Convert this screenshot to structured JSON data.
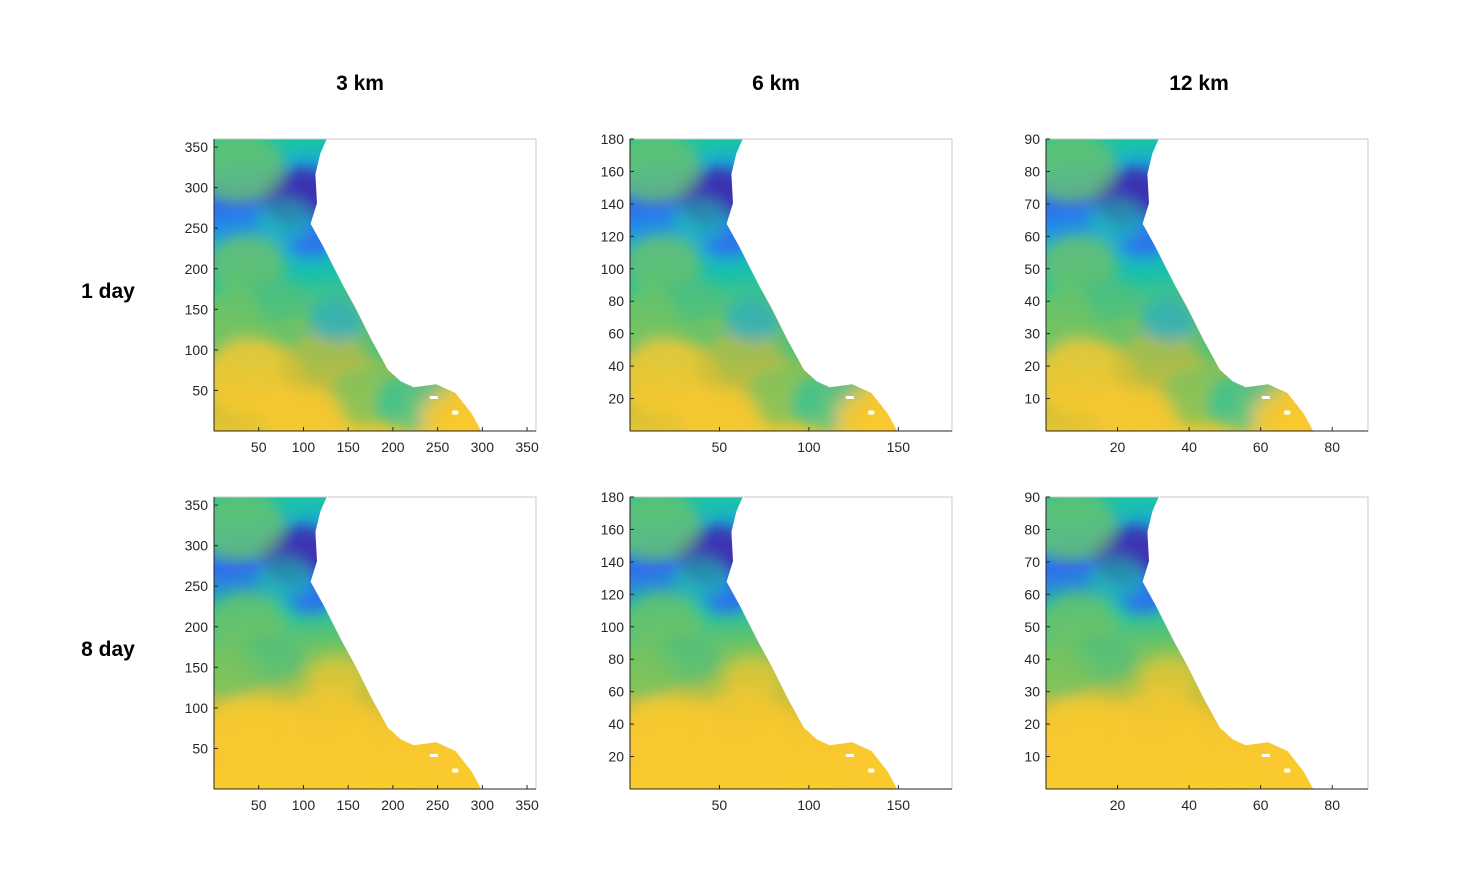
{
  "column_titles": [
    "3 km",
    "6 km",
    "12 km"
  ],
  "row_titles": [
    "1 day",
    "8 day"
  ],
  "colors": {
    "colormap": [
      "#3e26a8",
      "#2f6bf1",
      "#18a9dc",
      "#1bc1aa",
      "#73c361",
      "#c4bc3b",
      "#f9c92f",
      "#f8e81c"
    ],
    "axis": "#262626",
    "land": "#ffffff"
  },
  "chart_data": [
    {
      "type": "heatmap",
      "row": "1 day",
      "column": "3 km",
      "xlim": [
        0,
        360
      ],
      "ylim": [
        0,
        360
      ],
      "xticks": [
        50,
        100,
        150,
        200,
        250,
        300,
        350
      ],
      "yticks": [
        50,
        100,
        150,
        200,
        250,
        300,
        350
      ]
    },
    {
      "type": "heatmap",
      "row": "1 day",
      "column": "6 km",
      "xlim": [
        0,
        180
      ],
      "ylim": [
        0,
        180
      ],
      "xticks": [
        50,
        100,
        150
      ],
      "yticks": [
        20,
        40,
        60,
        80,
        100,
        120,
        140,
        160,
        180
      ]
    },
    {
      "type": "heatmap",
      "row": "1 day",
      "column": "12 km",
      "xlim": [
        0,
        90
      ],
      "ylim": [
        0,
        90
      ],
      "xticks": [
        20,
        40,
        60,
        80
      ],
      "yticks": [
        10,
        20,
        30,
        40,
        50,
        60,
        70,
        80,
        90
      ]
    },
    {
      "type": "heatmap",
      "row": "8 day",
      "column": "3 km",
      "xlim": [
        0,
        360
      ],
      "ylim": [
        0,
        360
      ],
      "xticks": [
        50,
        100,
        150,
        200,
        250,
        300,
        350
      ],
      "yticks": [
        50,
        100,
        150,
        200,
        250,
        300,
        350
      ]
    },
    {
      "type": "heatmap",
      "row": "8 day",
      "column": "6 km",
      "xlim": [
        0,
        180
      ],
      "ylim": [
        0,
        180
      ],
      "xticks": [
        50,
        100,
        150
      ],
      "yticks": [
        20,
        40,
        60,
        80,
        100,
        120,
        140,
        160,
        180
      ]
    },
    {
      "type": "heatmap",
      "row": "8 day",
      "column": "12 km",
      "xlim": [
        0,
        90
      ],
      "ylim": [
        0,
        90
      ],
      "xticks": [
        20,
        40,
        60,
        80
      ],
      "yticks": [
        10,
        20,
        30,
        40,
        50,
        60,
        70,
        80,
        90
      ]
    }
  ]
}
